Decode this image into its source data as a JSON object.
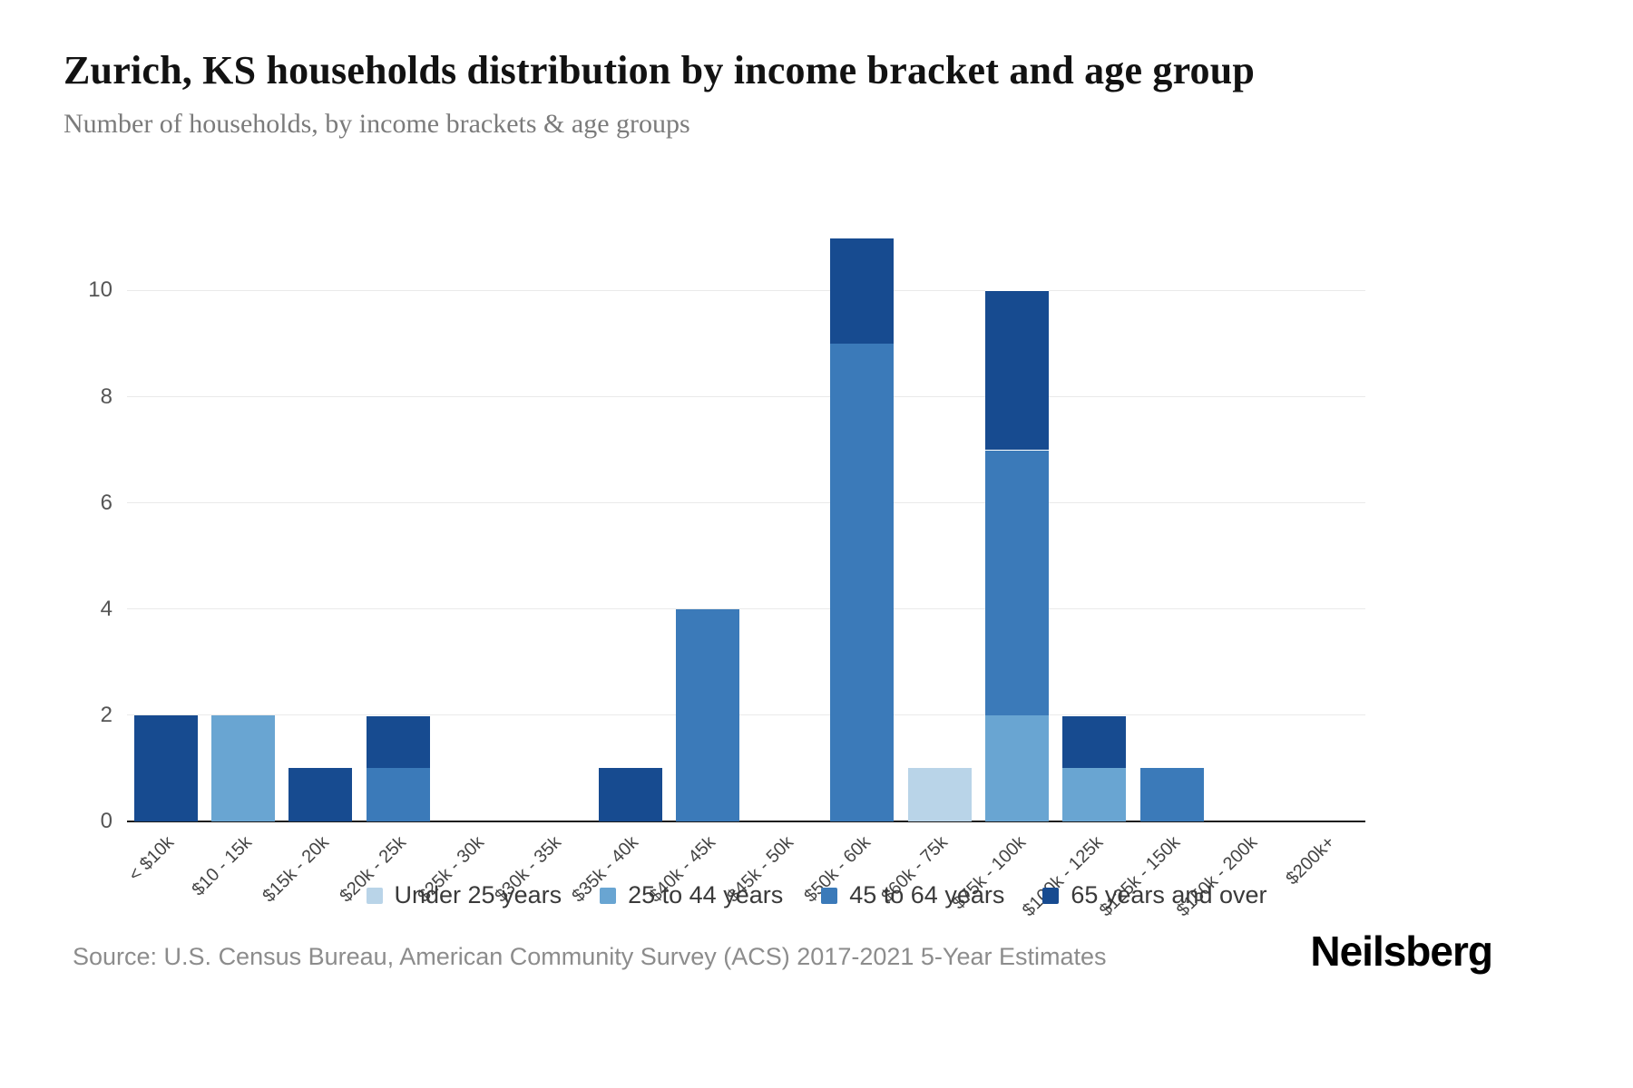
{
  "header": {
    "title": "Zurich, KS households distribution by income bracket and age group",
    "subtitle": "Number of households, by income brackets & age groups"
  },
  "chart_data": {
    "type": "bar",
    "stacked": true,
    "title": "Zurich, KS households distribution by income bracket and age group",
    "xlabel": "",
    "ylabel": "",
    "categories": [
      "< $10k",
      "$10 - 15k",
      "$15k - 20k",
      "$20k - 25k",
      "$25k - 30k",
      "$30k - 35k",
      "$35k - 40k",
      "$40k - 45k",
      "$45k - 50k",
      "$50k - 60k",
      "$60k - 75k",
      "$75k - 100k",
      "$100k - 125k",
      "$125k - 150k",
      "$150k - 200k",
      "$200k+"
    ],
    "series": [
      {
        "name": "Under 25 years",
        "color": "#b9d4e8",
        "values": [
          0,
          0,
          0,
          0,
          0,
          0,
          0,
          0,
          0,
          0,
          1,
          0,
          0,
          0,
          0,
          0
        ]
      },
      {
        "name": "25 to 44 years",
        "color": "#69a5d2",
        "values": [
          0,
          2,
          0,
          0,
          0,
          0,
          0,
          0,
          0,
          0,
          0,
          2,
          1,
          0,
          0,
          0
        ]
      },
      {
        "name": "45 to 64 years",
        "color": "#3b7ab9",
        "values": [
          0,
          0,
          0,
          1,
          0,
          0,
          0,
          4,
          0,
          9,
          0,
          5,
          0,
          1,
          0,
          0
        ]
      },
      {
        "name": "65 years and over",
        "color": "#174b90",
        "values": [
          2,
          0,
          1,
          1,
          0,
          0,
          1,
          0,
          0,
          2,
          0,
          3,
          1,
          0,
          0,
          0
        ]
      }
    ],
    "yticks": [
      0,
      2,
      4,
      6,
      8,
      10
    ],
    "ylim": [
      0,
      11.1
    ],
    "grid": true,
    "legend_position": "bottom"
  },
  "footer": {
    "source": "Source: U.S. Census Bureau, American Community Survey (ACS) 2017-2021 5-Year Estimates",
    "logo": "Neilsberg"
  }
}
